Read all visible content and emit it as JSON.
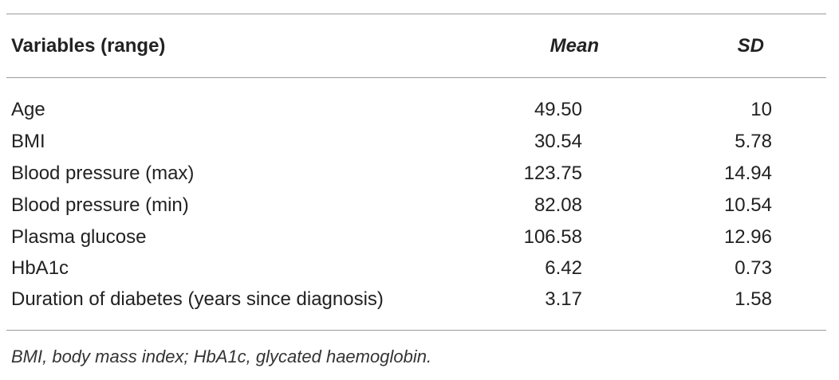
{
  "table": {
    "header": [
      "Variables (range)",
      "Mean",
      "SD"
    ],
    "rows": [
      [
        "Age",
        "49.50",
        "10"
      ],
      [
        "BMI",
        "30.54",
        "5.78"
      ],
      [
        "Blood pressure (max)",
        "123.75",
        "14.94"
      ],
      [
        "Blood pressure (min)",
        "82.08",
        "10.54"
      ],
      [
        "Plasma glucose",
        "106.58",
        "12.96"
      ],
      [
        "HbA1c",
        "6.42",
        "0.73"
      ],
      [
        "Duration of diabetes (years since diagnosis)",
        "3.17",
        "1.58"
      ]
    ]
  },
  "footnote": "BMI, body mass index; HbA1c, glycated haemoglobin."
}
